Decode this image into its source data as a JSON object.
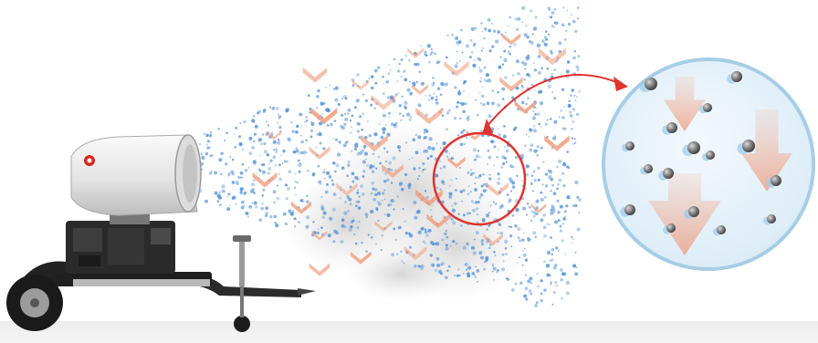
{
  "colors": {
    "background": "#ffffff",
    "ground": "#ececec",
    "mist_droplets": "#4f8fd6",
    "settling_arrows": "#f0a080",
    "highlight_circle": "#e0322e",
    "zoom_lens_fill": "#e6f3fb",
    "zoom_lens_border": "#a7cde6",
    "dust_particles": "#6b6b6b",
    "cannon_body": "#eeeeee",
    "engine_block": "#2a2a2a",
    "brand_logo": "#d8261f"
  },
  "icons": {
    "machine": "mist-cannon-icon",
    "arrows": "down-arrow-icon",
    "particles": "dust-particle-icon",
    "droplets": "water-droplet-icon"
  }
}
